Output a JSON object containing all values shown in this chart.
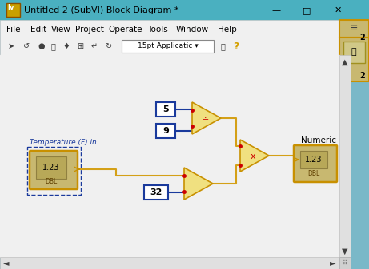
{
  "title": "Untitled 2 (SubVI) Block Diagram *",
  "titlebar_color": "#4ab0c0",
  "menubar_color": "#f0f0f0",
  "toolbar_color": "#f0f0f0",
  "diagram_color": "#f0f0f0",
  "outer_bg": "#7ab8c8",
  "wire_gold": "#d4a017",
  "wire_blue": "#1a3a9c",
  "node_fill": "#f0e080",
  "node_border": "#c89000",
  "const_fill": "#ffffff",
  "const_border": "#1a3a9c",
  "dbl_fill": "#c8b870",
  "dbl_border": "#c89000",
  "dbl_inner": "#b0a060",
  "text_color": "#000000",
  "label_blue": "#1a3a9c",
  "red_dot": "#cc0000",
  "scrollbar_color": "#d8d8d8",
  "menu_items": [
    "File",
    "Edit",
    "View",
    "Project",
    "Operate",
    "Tools",
    "Window",
    "Help"
  ]
}
